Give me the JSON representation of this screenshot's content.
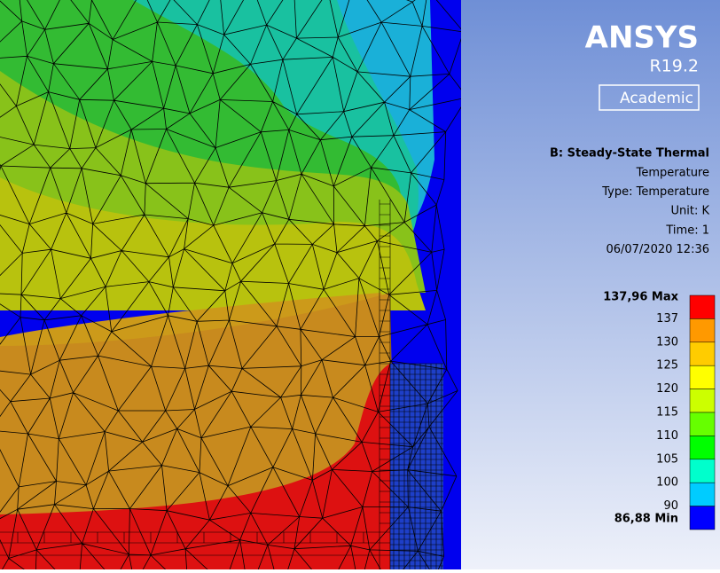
{
  "logo": {
    "title": "ANSYS",
    "version": "R19.2",
    "license": "Academic"
  },
  "info": {
    "title": "B: Steady-State Thermal",
    "lines": [
      "Temperature",
      "Type: Temperature",
      "Unit: K",
      "Time: 1",
      "06/07/2020 12:36"
    ]
  },
  "legend": {
    "max": "137,96 Max",
    "ticks": [
      "137",
      "130",
      "125",
      "120",
      "115",
      "110",
      "105",
      "100",
      "90"
    ],
    "min": "86,88 Min",
    "colors": [
      "#ff0000",
      "#ff9900",
      "#ffcc00",
      "#ffff00",
      "#ccff00",
      "#66ff00",
      "#00ff00",
      "#00ffcc",
      "#00ccff",
      "#0000ff"
    ]
  }
}
